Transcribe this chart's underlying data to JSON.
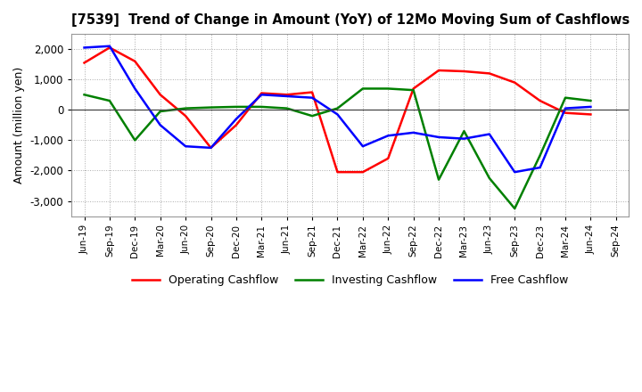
{
  "title": "[7539]  Trend of Change in Amount (YoY) of 12Mo Moving Sum of Cashflows",
  "ylabel": "Amount (million yen)",
  "x_labels": [
    "Jun-19",
    "Sep-19",
    "Dec-19",
    "Mar-20",
    "Jun-20",
    "Sep-20",
    "Dec-20",
    "Mar-21",
    "Jun-21",
    "Sep-21",
    "Dec-21",
    "Mar-22",
    "Jun-22",
    "Sep-22",
    "Dec-22",
    "Mar-23",
    "Jun-23",
    "Sep-23",
    "Dec-23",
    "Mar-24",
    "Jun-24",
    "Sep-24"
  ],
  "operating": [
    1550,
    2050,
    1600,
    500,
    -200,
    -1250,
    -500,
    550,
    500,
    580,
    -2050,
    -2050,
    -1600,
    700,
    1300,
    1270,
    1200,
    900,
    300,
    -100,
    -150,
    null
  ],
  "investing": [
    500,
    300,
    -1000,
    -50,
    50,
    80,
    100,
    100,
    50,
    -200,
    50,
    700,
    700,
    650,
    -2300,
    -700,
    -2250,
    -3250,
    -1500,
    400,
    300,
    null
  ],
  "free": [
    2050,
    2100,
    700,
    -500,
    -1200,
    -1250,
    -300,
    500,
    450,
    400,
    -150,
    -1200,
    -850,
    -750,
    -900,
    -950,
    -800,
    -2050,
    -1900,
    50,
    100,
    null
  ],
  "operating_color": "#ff0000",
  "investing_color": "#008000",
  "free_color": "#0000ff",
  "ylim": [
    -3500,
    2500
  ],
  "yticks": [
    -3000,
    -2000,
    -1000,
    0,
    1000,
    2000
  ],
  "background_color": "#ffffff",
  "grid_color": "#aaaaaa"
}
